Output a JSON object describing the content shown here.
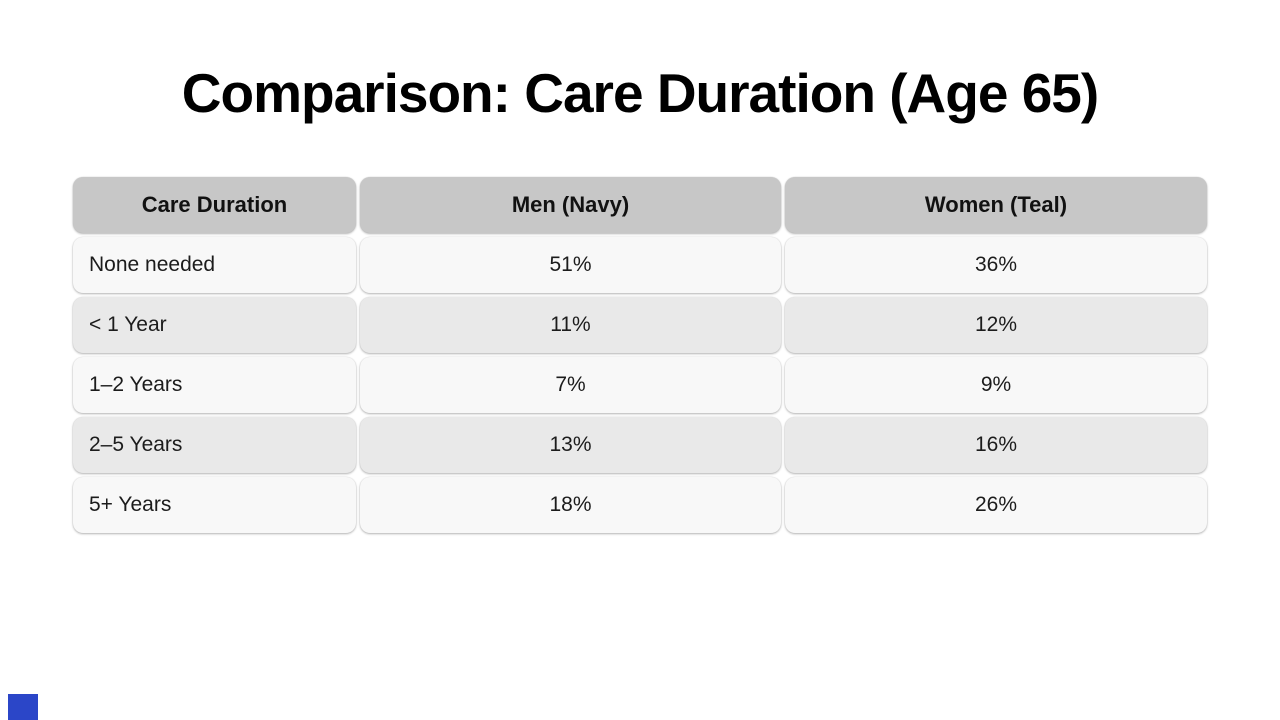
{
  "slide": {
    "title": "Comparison: Care Duration (Age 65)"
  },
  "table": {
    "headers": [
      "Care Duration",
      "Men (Navy)",
      "Women (Teal)"
    ],
    "rows": [
      {
        "label": "None needed",
        "men": "51%",
        "women": "36%"
      },
      {
        "label": "< 1 Year",
        "men": "11%",
        "women": "12%"
      },
      {
        "label": "1–2 Years",
        "men": "7%",
        "women": "9%"
      },
      {
        "label": "2–5 Years",
        "men": "13%",
        "women": "16%"
      },
      {
        "label": "5+ Years",
        "men": "18%",
        "women": "26%"
      }
    ]
  },
  "colors": {
    "header_bg": "#c7c7c7",
    "row_light": "#f8f8f8",
    "row_dark": "#e9e9e9",
    "accent_blue": "#2b46c8"
  },
  "chart_data": {
    "type": "table",
    "title": "Comparison: Care Duration (Age 65)",
    "categories": [
      "None needed",
      "< 1 Year",
      "1–2 Years",
      "2–5 Years",
      "5+ Years"
    ],
    "series": [
      {
        "name": "Men (Navy)",
        "values": [
          51,
          11,
          7,
          13,
          18
        ]
      },
      {
        "name": "Women (Teal)",
        "values": [
          36,
          12,
          9,
          16,
          26
        ]
      }
    ],
    "unit": "%"
  }
}
